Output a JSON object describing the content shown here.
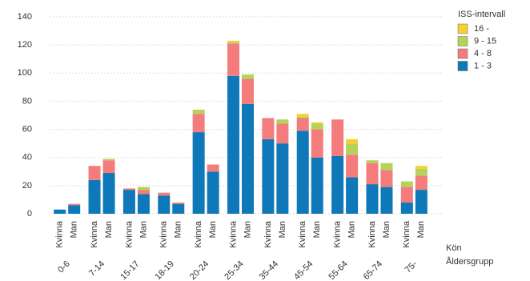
{
  "chart_data": {
    "type": "stacked-bar",
    "categories": [
      "Kvinna",
      "Man",
      "Kvinna",
      "Man",
      "Kvinna",
      "Man",
      "Kvinna",
      "Man",
      "Kvinna",
      "Man",
      "Kvinna",
      "Man",
      "Kvinna",
      "Man",
      "Kvinna",
      "Man",
      "Kvinna",
      "Man",
      "Kvinna",
      "Man",
      "Kvinna",
      "Man"
    ],
    "group_labels": [
      "0-6",
      "7-14",
      "15-17",
      "18-19",
      "20-24",
      "25-34",
      "35-44",
      "45-54",
      "55-64",
      "65-74",
      "75-"
    ],
    "x_axis_labels": [
      "Kön",
      "Åldersgrupp"
    ],
    "legend_title": "ISS-intervall",
    "series": [
      {
        "name": "1 - 3",
        "color": "#0f78b8",
        "values": [
          3,
          6,
          24,
          29,
          17,
          14,
          13,
          7,
          58,
          30,
          98,
          78,
          53,
          50,
          59,
          40,
          41,
          26,
          21,
          19,
          8,
          17
        ]
      },
      {
        "name": "4 - 8",
        "color": "#f47c7c",
        "values": [
          0,
          1,
          10,
          9,
          1,
          3,
          2,
          1,
          13,
          5,
          23,
          18,
          15,
          14,
          9,
          20,
          26,
          16,
          15,
          12,
          11,
          10
        ]
      },
      {
        "name": "9 - 15",
        "color": "#b5d35a",
        "values": [
          0,
          0,
          0,
          1,
          0,
          2,
          0,
          0,
          3,
          0,
          1,
          3,
          0,
          3,
          1,
          4,
          0,
          8,
          2,
          5,
          4,
          5
        ]
      },
      {
        "name": "16 -",
        "color": "#f5d033",
        "values": [
          0,
          0,
          0,
          0,
          0,
          0,
          0,
          0,
          0,
          0,
          1,
          0,
          0,
          0,
          2,
          1,
          0,
          3,
          0,
          0,
          0,
          2
        ]
      }
    ],
    "ylim": [
      0,
      140
    ],
    "yticks": [
      0,
      20,
      40,
      60,
      80,
      100,
      120,
      140
    ],
    "grid": true
  }
}
